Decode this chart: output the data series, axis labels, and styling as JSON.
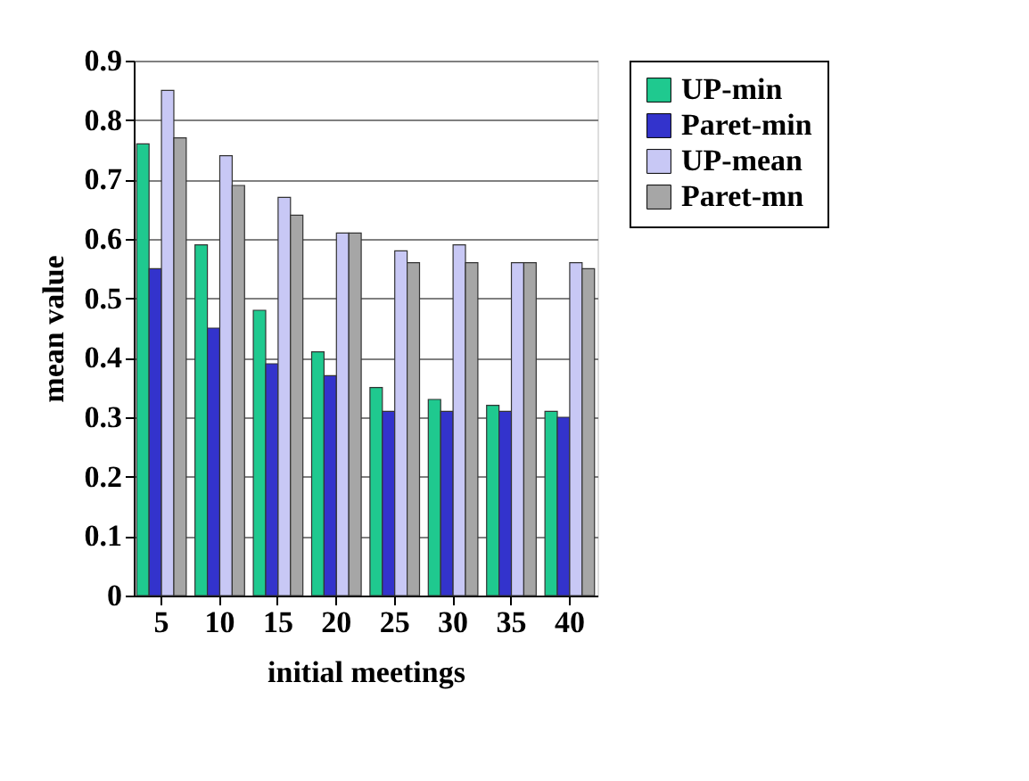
{
  "chart_data": {
    "type": "bar",
    "xlabel": "initial meetings",
    "ylabel": "mean value",
    "categories": [
      "5",
      "10",
      "15",
      "20",
      "25",
      "30",
      "35",
      "40"
    ],
    "series": [
      {
        "name": "UP-min",
        "color": "#1fc98f",
        "values": [
          0.76,
          0.59,
          0.48,
          0.41,
          0.35,
          0.33,
          0.32,
          0.31
        ]
      },
      {
        "name": "Paret-min",
        "color": "#3333cc",
        "values": [
          0.55,
          0.45,
          0.39,
          0.37,
          0.31,
          0.31,
          0.31,
          0.3
        ]
      },
      {
        "name": "UP-mean",
        "color": "#c8c8f5",
        "values": [
          0.85,
          0.74,
          0.67,
          0.61,
          0.58,
          0.59,
          0.56,
          0.56
        ]
      },
      {
        "name": "Paret-mn",
        "color": "#a6a6a6",
        "values": [
          0.77,
          0.69,
          0.64,
          0.61,
          0.56,
          0.56,
          0.56,
          0.55
        ]
      }
    ],
    "ylim": [
      0,
      0.9
    ],
    "yticks": [
      0,
      0.1,
      0.2,
      0.3,
      0.4,
      0.5,
      0.6,
      0.7,
      0.8,
      0.9
    ],
    "grid": "y",
    "legend": "right"
  }
}
